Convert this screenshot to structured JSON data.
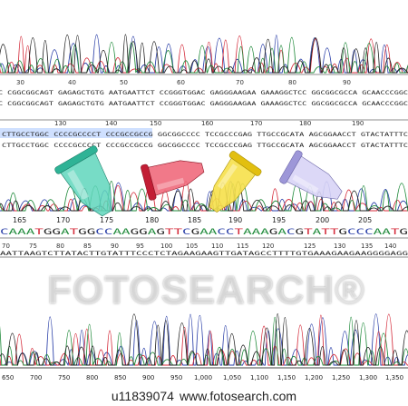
{
  "top_ruler": {
    "numbers": [
      "30",
      "40",
      "50",
      "60",
      "70",
      "80",
      "90"
    ],
    "seq1": "C CGGCGGCAGT GAGAGCTGTG AATGAATTCT CCGGGTGGAC GAGGGAAGAA GAAAGGCTCC GGCGGCGCCA GCAACCCGGC",
    "seq2": "C CGGCGGCAGT GAGAGCTGTG AATGAATTCT CCGGGTGGAC GAGGGAAGAA GAAAGGCTCC GGCGGCGCCA GCAACCCGGC"
  },
  "mid_ruler": {
    "numbers": [
      "130",
      "140",
      "150",
      "160",
      "170",
      "180",
      "190"
    ],
    "seq1": "CTTGCCTGGC CCCCGCCCCT CCCGCCGCCG GGCGGCCCC TCCGCCCGAG TTGCCGCATA AGCGGAACCT GTACTATTTC",
    "seq2": "CTTGCCTGGC CCCCGCCCCT CCCGCCGCCG GGCGGCCCC TCCGCCCGAG TTGCCGCATA AGCGGAACCT GTACTATTTC"
  },
  "lower_ruler": {
    "numbers": [
      "165",
      "170",
      "175",
      "180",
      "185",
      "190",
      "195",
      "200",
      "205"
    ],
    "seq": "CAAATGGATGGCCAAGGAGTTCGAACCTAAAGACGTATTGCCCAATG"
  },
  "bottom_ruler": {
    "numbers": [
      "70",
      "75",
      "80",
      "85",
      "90",
      "95",
      "100",
      "105",
      "110",
      "115",
      "120",
      "125",
      "130",
      "135",
      "140"
    ],
    "seq": "AATTAAGTCTTATACTTGTATTTCCCTCTAGAAGAAGTTGATAGCCTTTTGTGAAAGAAGAAGGGGAGG"
  },
  "axis_ticks": [
    "650",
    "700",
    "750",
    "800",
    "850",
    "900",
    "950",
    "1,000",
    "1,050",
    "1,100",
    "1,150",
    "1,200",
    "1,250",
    "1,300",
    "1,350"
  ],
  "watermark": "FOTOSEARCH®",
  "credit": {
    "id": "u11839074",
    "site": "www.fotosearch.com"
  },
  "colors": {
    "trace_blue": "#2a3fa8",
    "trace_red": "#d42b3a",
    "trace_green": "#1f8a3a",
    "trace_black": "#222222",
    "tube_teal": "#3fc4a8",
    "tube_red": "#e0314a",
    "tube_yellow": "#f2d21e",
    "tube_lavender": "#b9b4e8"
  }
}
